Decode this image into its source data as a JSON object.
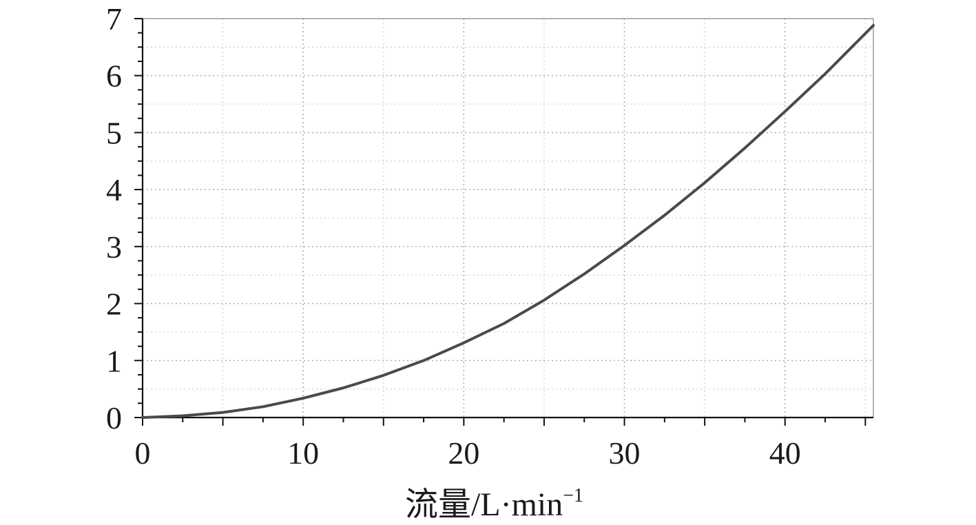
{
  "chart_data": {
    "type": "line",
    "title": "",
    "xlabel": "流量/L·min",
    "xlabel_superscript": "−1",
    "ylabel": "",
    "xlim": [
      0,
      45.5
    ],
    "ylim": [
      0,
      7
    ],
    "x_ticks": [
      0,
      10,
      20,
      30,
      40
    ],
    "y_ticks": [
      0,
      1,
      2,
      3,
      4,
      5,
      6,
      7
    ],
    "grid": true,
    "legend": "none",
    "series": [
      {
        "x": [
          0,
          2.5,
          5,
          7.5,
          10,
          12.5,
          15,
          17.5,
          20,
          22.5,
          25,
          27.5,
          30,
          32.5,
          35,
          37.5,
          40,
          42.5,
          45.5
        ],
        "y": [
          0,
          0.03,
          0.09,
          0.19,
          0.34,
          0.52,
          0.74,
          1.0,
          1.31,
          1.65,
          2.06,
          2.52,
          3.02,
          3.55,
          4.12,
          4.73,
          5.37,
          6.03,
          6.88
        ],
        "color": "#4a4a4a"
      }
    ]
  }
}
